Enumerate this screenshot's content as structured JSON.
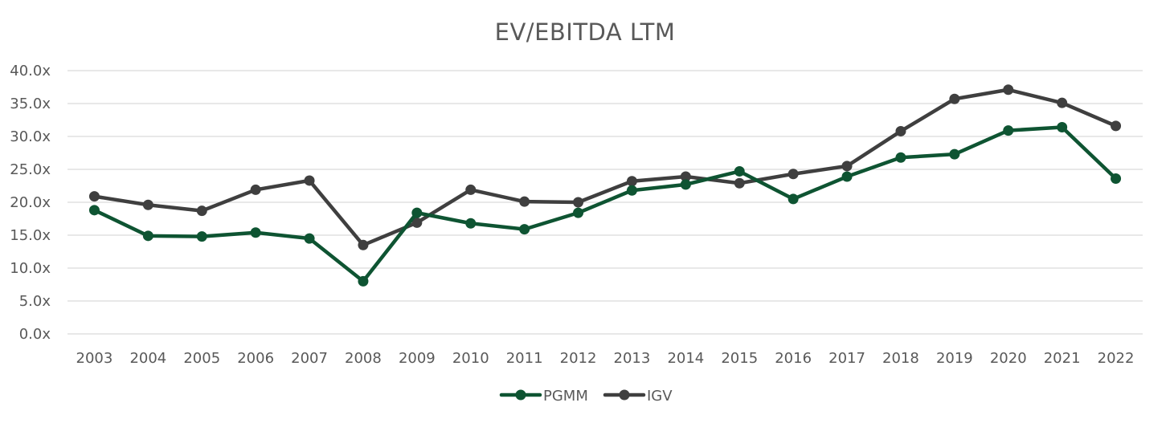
{
  "chart_data": {
    "type": "line",
    "title": "EV/EBITDA LTM",
    "xlabel": "",
    "ylabel": "",
    "categories": [
      "2003",
      "2004",
      "2005",
      "2006",
      "2007",
      "2008",
      "2009",
      "2010",
      "2011",
      "2012",
      "2013",
      "2014",
      "2015",
      "2016",
      "2017",
      "2018",
      "2019",
      "2020",
      "2021",
      "2022"
    ],
    "ylim": [
      0,
      40
    ],
    "y_ticks": [
      "0.0x",
      "5.0x",
      "10.0x",
      "15.0x",
      "20.0x",
      "25.0x",
      "30.0x",
      "35.0x",
      "40.0x"
    ],
    "grid": true,
    "legend_position": "bottom",
    "series": [
      {
        "name": "PGMM",
        "color": "#0e5432",
        "values": [
          18.8,
          14.9,
          14.8,
          15.4,
          14.5,
          8.0,
          18.4,
          16.8,
          15.9,
          18.4,
          21.8,
          22.7,
          24.7,
          20.5,
          23.9,
          26.8,
          27.3,
          30.9,
          31.4,
          23.6
        ]
      },
      {
        "name": "IGV",
        "color": "#3f3f3f",
        "values": [
          20.9,
          19.6,
          18.7,
          21.9,
          23.3,
          13.5,
          16.9,
          21.9,
          20.1,
          20.0,
          23.2,
          23.9,
          22.9,
          24.3,
          25.5,
          30.8,
          35.7,
          37.1,
          35.1,
          31.6
        ]
      }
    ]
  }
}
